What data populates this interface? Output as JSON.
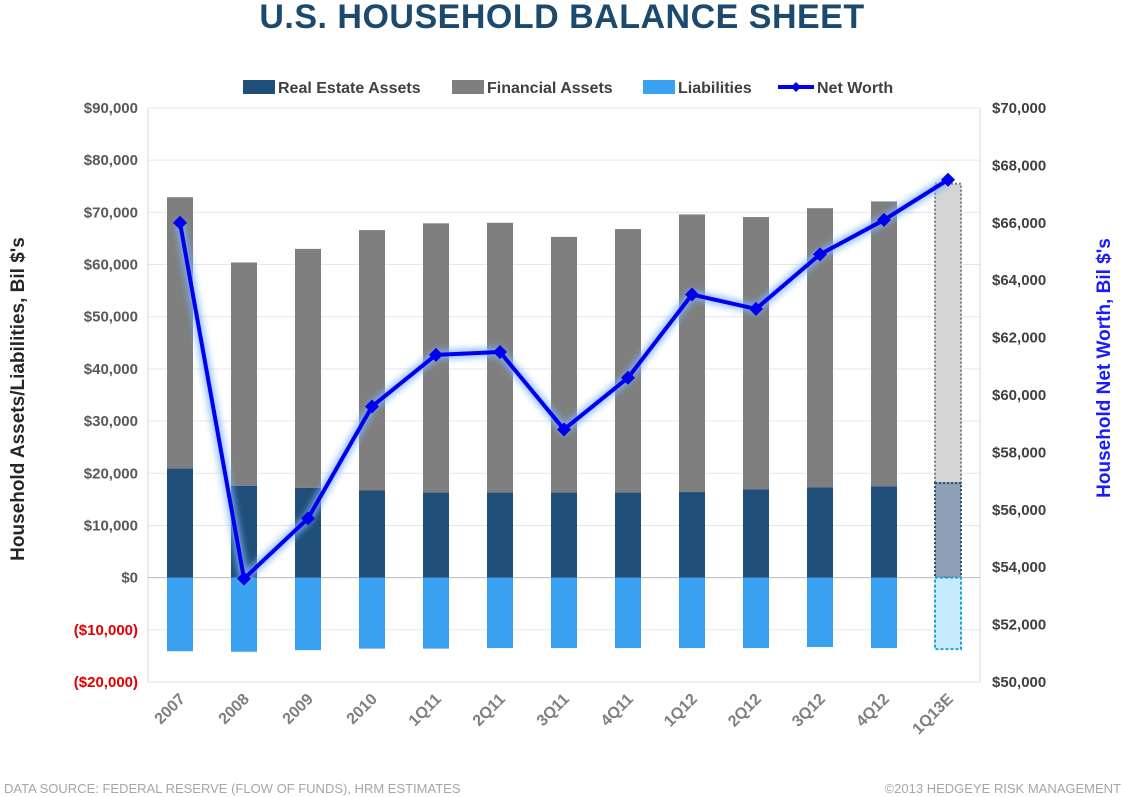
{
  "chart_data": {
    "type": "bar",
    "title": "U.S. HOUSEHOLD BALANCE SHEET",
    "categories": [
      "2007",
      "2008",
      "2009",
      "2010",
      "1Q11",
      "2Q11",
      "3Q11",
      "4Q11",
      "1Q12",
      "2Q12",
      "3Q12",
      "4Q12",
      "1Q13E"
    ],
    "estimate_categories": [
      "1Q13E"
    ],
    "series": [
      {
        "name": "Real Estate Assets",
        "type": "bar",
        "axis": "left",
        "color": "#1f4e79",
        "values": [
          20900,
          17600,
          17200,
          16700,
          16300,
          16300,
          16300,
          16300,
          16400,
          16900,
          17300,
          17500,
          18100
        ]
      },
      {
        "name": "Financial Assets",
        "type": "bar",
        "axis": "left",
        "color": "#7f7f7f",
        "values": [
          52000,
          42800,
          45800,
          49900,
          51600,
          51700,
          49000,
          50500,
          53200,
          52200,
          53500,
          54600,
          57400
        ]
      },
      {
        "name": "Liabilities",
        "type": "bar",
        "axis": "left",
        "color": "#3aa0f0",
        "values": [
          -14100,
          -14200,
          -13900,
          -13600,
          -13600,
          -13500,
          -13500,
          -13500,
          -13500,
          -13500,
          -13300,
          -13500,
          -13700
        ]
      },
      {
        "name": "Net Worth",
        "type": "line",
        "axis": "right",
        "color": "#0000ee",
        "values": [
          66000,
          53600,
          55700,
          59600,
          61400,
          61500,
          58800,
          60600,
          63500,
          63000,
          64900,
          66100,
          67500
        ]
      }
    ],
    "ylabel": "Household Assets/Liabilities, Bil $'s",
    "ylabel_right": "Household Net Worth, Bil $'s",
    "ylim": [
      -20000,
      90000
    ],
    "ylim_right": [
      50000,
      70000
    ],
    "yticks": [
      "$90,000",
      "$80,000",
      "$70,000",
      "$60,000",
      "$50,000",
      "$40,000",
      "$30,000",
      "$20,000",
      "$10,000",
      "$0",
      "($10,000)",
      "($20,000)"
    ],
    "yticks_right": [
      "$70,000",
      "$68,000",
      "$66,000",
      "$64,000",
      "$62,000",
      "$60,000",
      "$58,000",
      "$56,000",
      "$54,000",
      "$52,000",
      "$50,000"
    ],
    "negative_tick_color": "#e00000",
    "legend_position": "top",
    "grid": true
  },
  "footer": {
    "source": "DATA SOURCE:  FEDERAL RESERVE (FLOW OF FUNDS), HRM ESTIMATES",
    "copyright": "©2013 HEDGEYE RISK MANAGEMENT"
  }
}
